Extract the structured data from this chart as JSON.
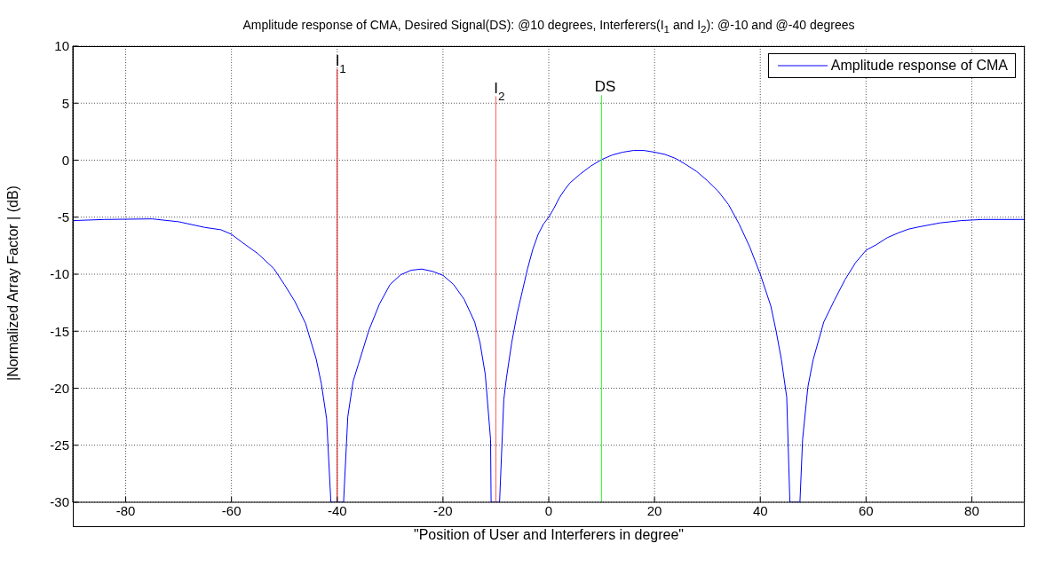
{
  "chart_data": {
    "type": "line",
    "title": "Amplitude response of CMA, Desired Signal(DS): @10 degrees, Interferers(I$_{1}$ and I$_{2}$): @-10 and @-40 degrees",
    "xlabel": "\"Position of User and Interferers in degree\"",
    "ylabel": "|Normalized Array Factor | (dB)",
    "xlim": [
      -90,
      90
    ],
    "xticks": [
      -80,
      -60,
      -40,
      -20,
      0,
      20,
      40,
      60,
      80
    ],
    "ylim": [
      -30,
      10
    ],
    "yticks": [
      -30,
      -25,
      -20,
      -15,
      -10,
      -5,
      0,
      5,
      10
    ],
    "grid": true,
    "legend": "top right",
    "marker": "none",
    "line_style": "solid",
    "series": [
      {
        "name": "Amplitude response of CMA",
        "color": "#0000ff",
        "x": [
          -90,
          -84,
          -75,
          -70,
          -65,
          -62,
          -60,
          -58,
          -55,
          -52,
          -50,
          -48,
          -46,
          -44,
          -43,
          -42,
          -41.2,
          -38.8,
          -38,
          -37,
          -36,
          -34,
          -32,
          -30,
          -28,
          -26,
          -24,
          -22,
          -20,
          -18,
          -16,
          -14,
          -13,
          -12,
          -11,
          -10.9,
          -9.3,
          -8.5,
          -8,
          -7,
          -6,
          -5,
          -4,
          -3,
          -2,
          -1,
          0,
          1,
          2,
          3,
          4,
          6,
          8,
          10,
          12,
          14,
          16,
          18,
          20,
          22,
          24,
          26,
          28,
          30,
          32,
          34,
          36,
          38,
          40,
          42,
          43,
          44,
          45,
          45.6,
          47.5,
          48,
          49,
          50,
          52,
          54,
          56,
          58,
          60,
          62,
          64,
          66,
          68,
          70,
          74,
          78,
          82,
          90
        ],
        "values": [
          -5.3,
          -5.2,
          -5.15,
          -5.4,
          -5.9,
          -6.1,
          -6.5,
          -7.2,
          -8.2,
          -9.5,
          -10.9,
          -12.4,
          -14.3,
          -17.4,
          -19.6,
          -22.7,
          -30,
          -30,
          -22.5,
          -19.4,
          -17.9,
          -14.9,
          -12.6,
          -10.9,
          -10.05,
          -9.65,
          -9.55,
          -9.75,
          -10.1,
          -10.9,
          -12.2,
          -14.2,
          -16,
          -18.8,
          -24.5,
          -30,
          -30,
          -21,
          -19.1,
          -16,
          -13.5,
          -11.5,
          -9.5,
          -7.8,
          -6.5,
          -5.6,
          -5,
          -4.2,
          -3.3,
          -2.6,
          -2,
          -1.2,
          -0.5,
          0.05,
          0.45,
          0.7,
          0.85,
          0.85,
          0.7,
          0.5,
          0.15,
          -0.4,
          -1,
          -1.8,
          -2.7,
          -3.9,
          -5.6,
          -7.6,
          -10,
          -12.8,
          -15,
          -17.5,
          -20.8,
          -30,
          -30,
          -24.5,
          -19.9,
          -17.5,
          -14.2,
          -12.3,
          -10.5,
          -9,
          -7.9,
          -7.4,
          -6.8,
          -6.4,
          -6.05,
          -5.85,
          -5.5,
          -5.3,
          -5.2,
          -5.2
        ]
      },
      {
        "color": "#d40000",
        "x": [
          -40,
          -40
        ],
        "values": [
          -30,
          8
        ]
      },
      {
        "color": "#ff5a5a",
        "x": [
          -10,
          -10
        ],
        "values": [
          -30,
          5.6
        ]
      },
      {
        "color": "#33ff33",
        "x": [
          10,
          10
        ],
        "values": [
          -30,
          5.7
        ]
      }
    ],
    "annotations": [
      {
        "text": "I$_{1}$",
        "x": -40,
        "y": 8
      },
      {
        "text": "I$_{2}$",
        "x": -10,
        "y": 5.6
      },
      {
        "text": "DS",
        "x": 10,
        "y": 5.7
      }
    ]
  }
}
